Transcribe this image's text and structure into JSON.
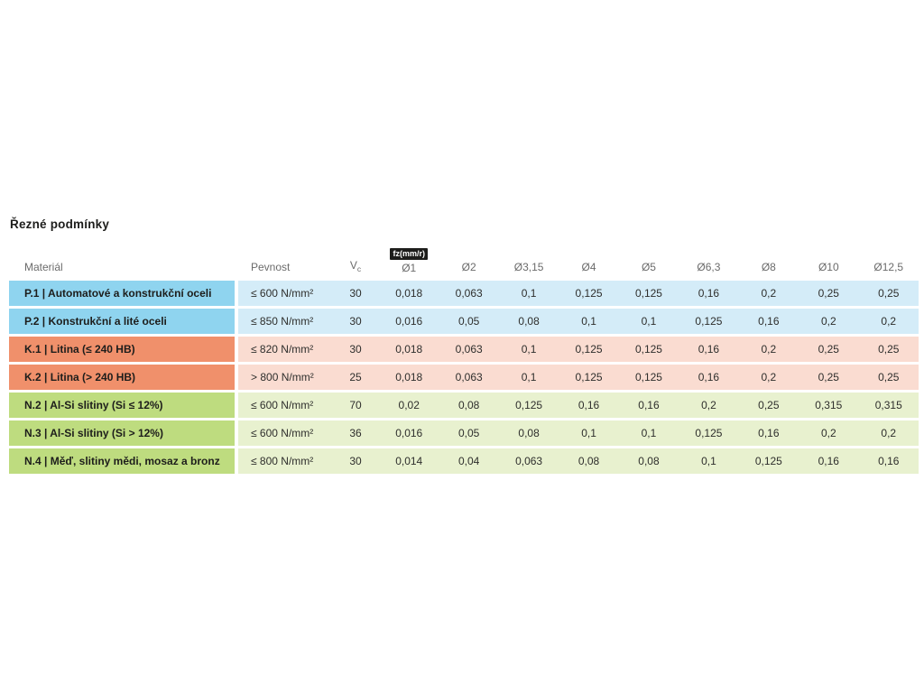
{
  "title": "Řezné podmínky",
  "colors": {
    "P_dark": "#8fd4ef",
    "P_light": "#d4ecf8",
    "K_dark": "#f0906b",
    "K_light": "#fadcd1",
    "N_dark": "#bedc7f",
    "N_light": "#e8f1cf"
  },
  "table": {
    "headers": {
      "material": "Materiál",
      "pevnost": "Pevnost",
      "vc": "V",
      "vc_sub": "c",
      "fz_badge": "fz(mm/r)",
      "diameters": [
        "Ø1",
        "Ø2",
        "Ø3,15",
        "Ø4",
        "Ø5",
        "Ø6,3",
        "Ø8",
        "Ø10",
        "Ø12,5"
      ]
    },
    "rows": [
      {
        "group": "P",
        "material": "P.1 | Automatové a konstrukční oceli",
        "pevnost": "≤ 600 N/mm²",
        "vc": "30",
        "fz": [
          "0,018",
          "0,063",
          "0,1",
          "0,125",
          "0,125",
          "0,16",
          "0,2",
          "0,25",
          "0,25"
        ]
      },
      {
        "group": "P",
        "material": "P.2 | Konstrukční a lité oceli",
        "pevnost": "≤ 850 N/mm²",
        "vc": "30",
        "fz": [
          "0,016",
          "0,05",
          "0,08",
          "0,1",
          "0,1",
          "0,125",
          "0,16",
          "0,2",
          "0,2"
        ]
      },
      {
        "group": "K",
        "material": "K.1 | Litina (≤ 240 HB)",
        "pevnost": "≤ 820 N/mm²",
        "vc": "30",
        "fz": [
          "0,018",
          "0,063",
          "0,1",
          "0,125",
          "0,125",
          "0,16",
          "0,2",
          "0,25",
          "0,25"
        ]
      },
      {
        "group": "K",
        "material": "K.2 | Litina (> 240 HB)",
        "pevnost": "> 800 N/mm²",
        "vc": "25",
        "fz": [
          "0,018",
          "0,063",
          "0,1",
          "0,125",
          "0,125",
          "0,16",
          "0,2",
          "0,25",
          "0,25"
        ]
      },
      {
        "group": "N",
        "material": "N.2 | Al-Si slitiny (Si ≤ 12%)",
        "pevnost": "≤ 600 N/mm²",
        "vc": "70",
        "fz": [
          "0,02",
          "0,08",
          "0,125",
          "0,16",
          "0,16",
          "0,2",
          "0,25",
          "0,315",
          "0,315"
        ]
      },
      {
        "group": "N",
        "material": "N.3 | Al-Si slitiny (Si > 12%)",
        "pevnost": "≤ 600 N/mm²",
        "vc": "36",
        "fz": [
          "0,016",
          "0,05",
          "0,08",
          "0,1",
          "0,1",
          "0,125",
          "0,16",
          "0,2",
          "0,2"
        ]
      },
      {
        "group": "N",
        "material": "N.4 | Měď, slitiny mědi, mosaz a bronz",
        "pevnost": "≤ 800 N/mm²",
        "vc": "30",
        "fz": [
          "0,014",
          "0,04",
          "0,063",
          "0,08",
          "0,08",
          "0,1",
          "0,125",
          "0,16",
          "0,16"
        ]
      }
    ]
  }
}
